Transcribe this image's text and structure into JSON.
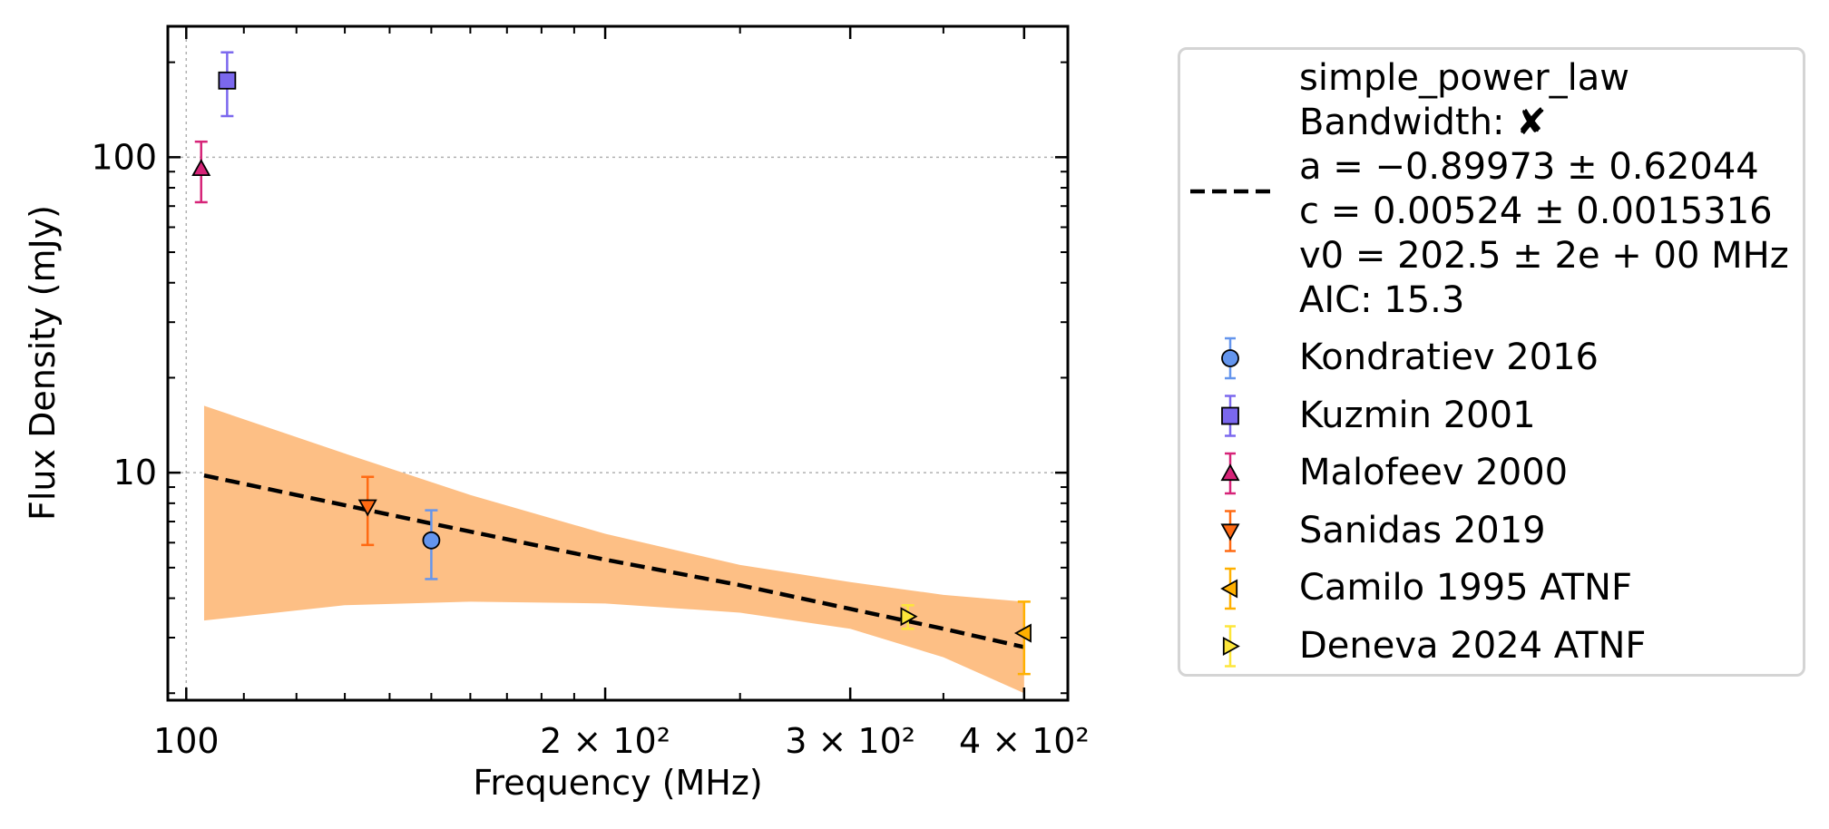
{
  "chart_data": {
    "type": "scatter",
    "xlabel": "Frequency (MHz)",
    "ylabel": "Flux Density (mJy)",
    "xscale": "log",
    "yscale": "log",
    "xlim": [
      97,
      430
    ],
    "ylim": [
      1.9,
      260
    ],
    "grid": true,
    "x_ticks": [
      {
        "value": 100,
        "label": "100"
      },
      {
        "value": 200,
        "label": "2 × 10²"
      },
      {
        "value": 300,
        "label": "3 × 10²"
      },
      {
        "value": 400,
        "label": "4 × 10²"
      }
    ],
    "y_ticks": [
      {
        "value": 10,
        "label": "10"
      },
      {
        "value": 100,
        "label": "100"
      }
    ],
    "fit": {
      "label_lines": [
        "simple_power_law",
        "Bandwidth: ✘",
        "a = −0.89973 ± 0.62044",
        "c = 0.00524 ± 0.0015316",
        "v0 = 202.5 ± 2e + 00 MHz",
        "AIC: 15.3"
      ],
      "color": "#000000",
      "x": [
        103,
        150,
        200,
        250,
        300,
        350,
        400
      ],
      "y": [
        9.8,
        6.9,
        5.3,
        4.4,
        3.7,
        3.2,
        2.8
      ],
      "band_x": [
        103,
        130,
        160,
        200,
        250,
        300,
        350,
        400
      ],
      "band_upper": [
        16.3,
        11.5,
        8.5,
        6.4,
        5.1,
        4.5,
        4.1,
        3.9
      ],
      "band_lower": [
        3.4,
        3.8,
        3.9,
        3.85,
        3.6,
        3.2,
        2.6,
        2.0
      ],
      "band_color": "#fdbf85"
    },
    "series": [
      {
        "name": "Kondratiev 2016",
        "marker": "circle",
        "color": "#6495ed",
        "errcolor": "#6495ed",
        "points": [
          {
            "x": 150,
            "y": 6.1,
            "ylo": 4.6,
            "yhi": 7.6
          }
        ]
      },
      {
        "name": "Kuzmin 2001",
        "marker": "square",
        "color": "#7b68ee",
        "errcolor": "#7b68ee",
        "points": [
          {
            "x": 107,
            "y": 175,
            "ylo": 135,
            "yhi": 215
          }
        ]
      },
      {
        "name": "Malofeev 2000",
        "marker": "triangle-up",
        "color": "#d62478",
        "errcolor": "#d62478",
        "points": [
          {
            "x": 102.5,
            "y": 92,
            "ylo": 72,
            "yhi": 112
          }
        ]
      },
      {
        "name": "Sanidas 2019",
        "marker": "triangle-down",
        "color": "#ff6a13",
        "errcolor": "#ff6a13",
        "points": [
          {
            "x": 135,
            "y": 7.8,
            "ylo": 5.9,
            "yhi": 9.7
          }
        ]
      },
      {
        "name": "Camilo 1995 ATNF",
        "marker": "triangle-left",
        "color": "#ffb000",
        "errcolor": "#ffb000",
        "points": [
          {
            "x": 400,
            "y": 3.1,
            "ylo": 2.3,
            "yhi": 3.9
          }
        ]
      },
      {
        "name": "Deneva 2024 ATNF",
        "marker": "triangle-right",
        "color": "#fde63a",
        "errcolor": "#fde63a",
        "points": [
          {
            "x": 330,
            "y": 3.5,
            "ylo": 3.2,
            "yhi": 3.8
          }
        ]
      }
    ]
  }
}
